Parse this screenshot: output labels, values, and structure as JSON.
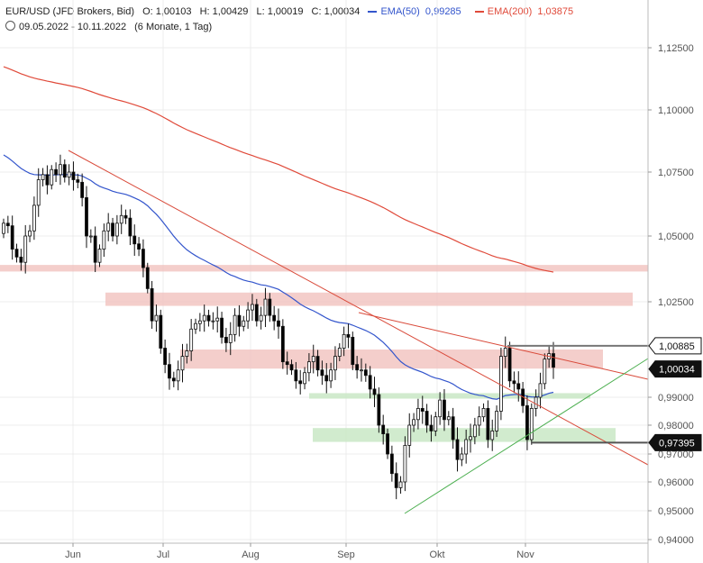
{
  "header": {
    "symbol": "EUR/USD (JFD Brokers, Bid)",
    "open": "O: 1,00103",
    "high": "H: 1,00429",
    "low": "L: 1,00019",
    "close": "C: 1,00034",
    "ema50_label": "EMA(50)",
    "ema50_value": "0,99285",
    "ema200_label": "EMA(200)",
    "ema200_value": "1,03875",
    "date_range": "09.05.2022 - 10.11.2022",
    "period": "(6 Monate, 1 Tag)"
  },
  "colors": {
    "ema50": "#3355cc",
    "ema200": "#e04a3a",
    "resistance_zone": "#f2c6c2",
    "support_zone": "#c9e8c6",
    "trend_down": "#d94a3a",
    "trend_up": "#4caf50",
    "candle_up": "#ffffff",
    "candle_down": "#000000"
  },
  "chart_data": {
    "type": "candlestick",
    "xlabel": "",
    "ylabel": "",
    "x_tick_labels": [
      "Jun",
      "Jul",
      "Aug",
      "Sep",
      "Okt",
      "Nov"
    ],
    "y_tick_labels": [
      "1,12500",
      "1,10000",
      "1,07500",
      "1,05000",
      "1,02500",
      "0,99000",
      "0,98000",
      "0,97000",
      "0,96000",
      "0,95000",
      "0,94000"
    ],
    "y_ticks": [
      1.125,
      1.1,
      1.075,
      1.05,
      1.025,
      0.99,
      0.98,
      0.97,
      0.96,
      0.95,
      0.94
    ],
    "price_tags": [
      {
        "label": "1,00885",
        "value": 1.00885,
        "style": "outline"
      },
      {
        "label": "1,00034",
        "value": 1.00034,
        "style": "filled"
      },
      {
        "label": "0,97395",
        "value": 0.97395,
        "style": "filled"
      }
    ],
    "closes": [
      1.055,
      1.054,
      1.045,
      1.042,
      1.04,
      1.05,
      1.052,
      1.062,
      1.072,
      1.074,
      1.07,
      1.076,
      1.074,
      1.078,
      1.073,
      1.075,
      1.072,
      1.071,
      1.065,
      1.05,
      1.05,
      1.04,
      1.045,
      1.052,
      1.055,
      1.05,
      1.055,
      1.058,
      1.057,
      1.05,
      1.047,
      1.045,
      1.038,
      1.03,
      1.018,
      1.02,
      1.008,
      1.002,
      0.997,
      0.996,
      1.0,
      1.005,
      1.007,
      1.015,
      1.017,
      1.018,
      1.02,
      1.018,
      1.018,
      1.019,
      1.012,
      1.01,
      1.013,
      1.02,
      1.016,
      1.018,
      1.022,
      1.024,
      1.018,
      1.02,
      1.026,
      1.02,
      1.018,
      1.016,
      1.003,
      1.002,
      1.0,
      0.996,
      0.995,
      0.999,
      1.003,
      1.005,
      1.0,
      0.998,
      0.996,
      1.0,
      1.005,
      1.008,
      1.013,
      1.012,
      1.002,
      1.0,
      1.0,
      0.998,
      0.993,
      0.991,
      0.98,
      0.977,
      0.97,
      0.963,
      0.958,
      0.96,
      0.973,
      0.98,
      0.982,
      0.986,
      0.985,
      0.98,
      0.978,
      0.983,
      0.989,
      0.982,
      0.983,
      0.975,
      0.968,
      0.97,
      0.975,
      0.976,
      0.98,
      0.983,
      0.986,
      0.975,
      0.978,
      0.985,
      1.005,
      1.008,
      0.996,
      0.995,
      0.993,
      0.987,
      0.975,
      0.986,
      0.99,
      0.995,
      1.004,
      1.006,
      1.001
    ]
  }
}
